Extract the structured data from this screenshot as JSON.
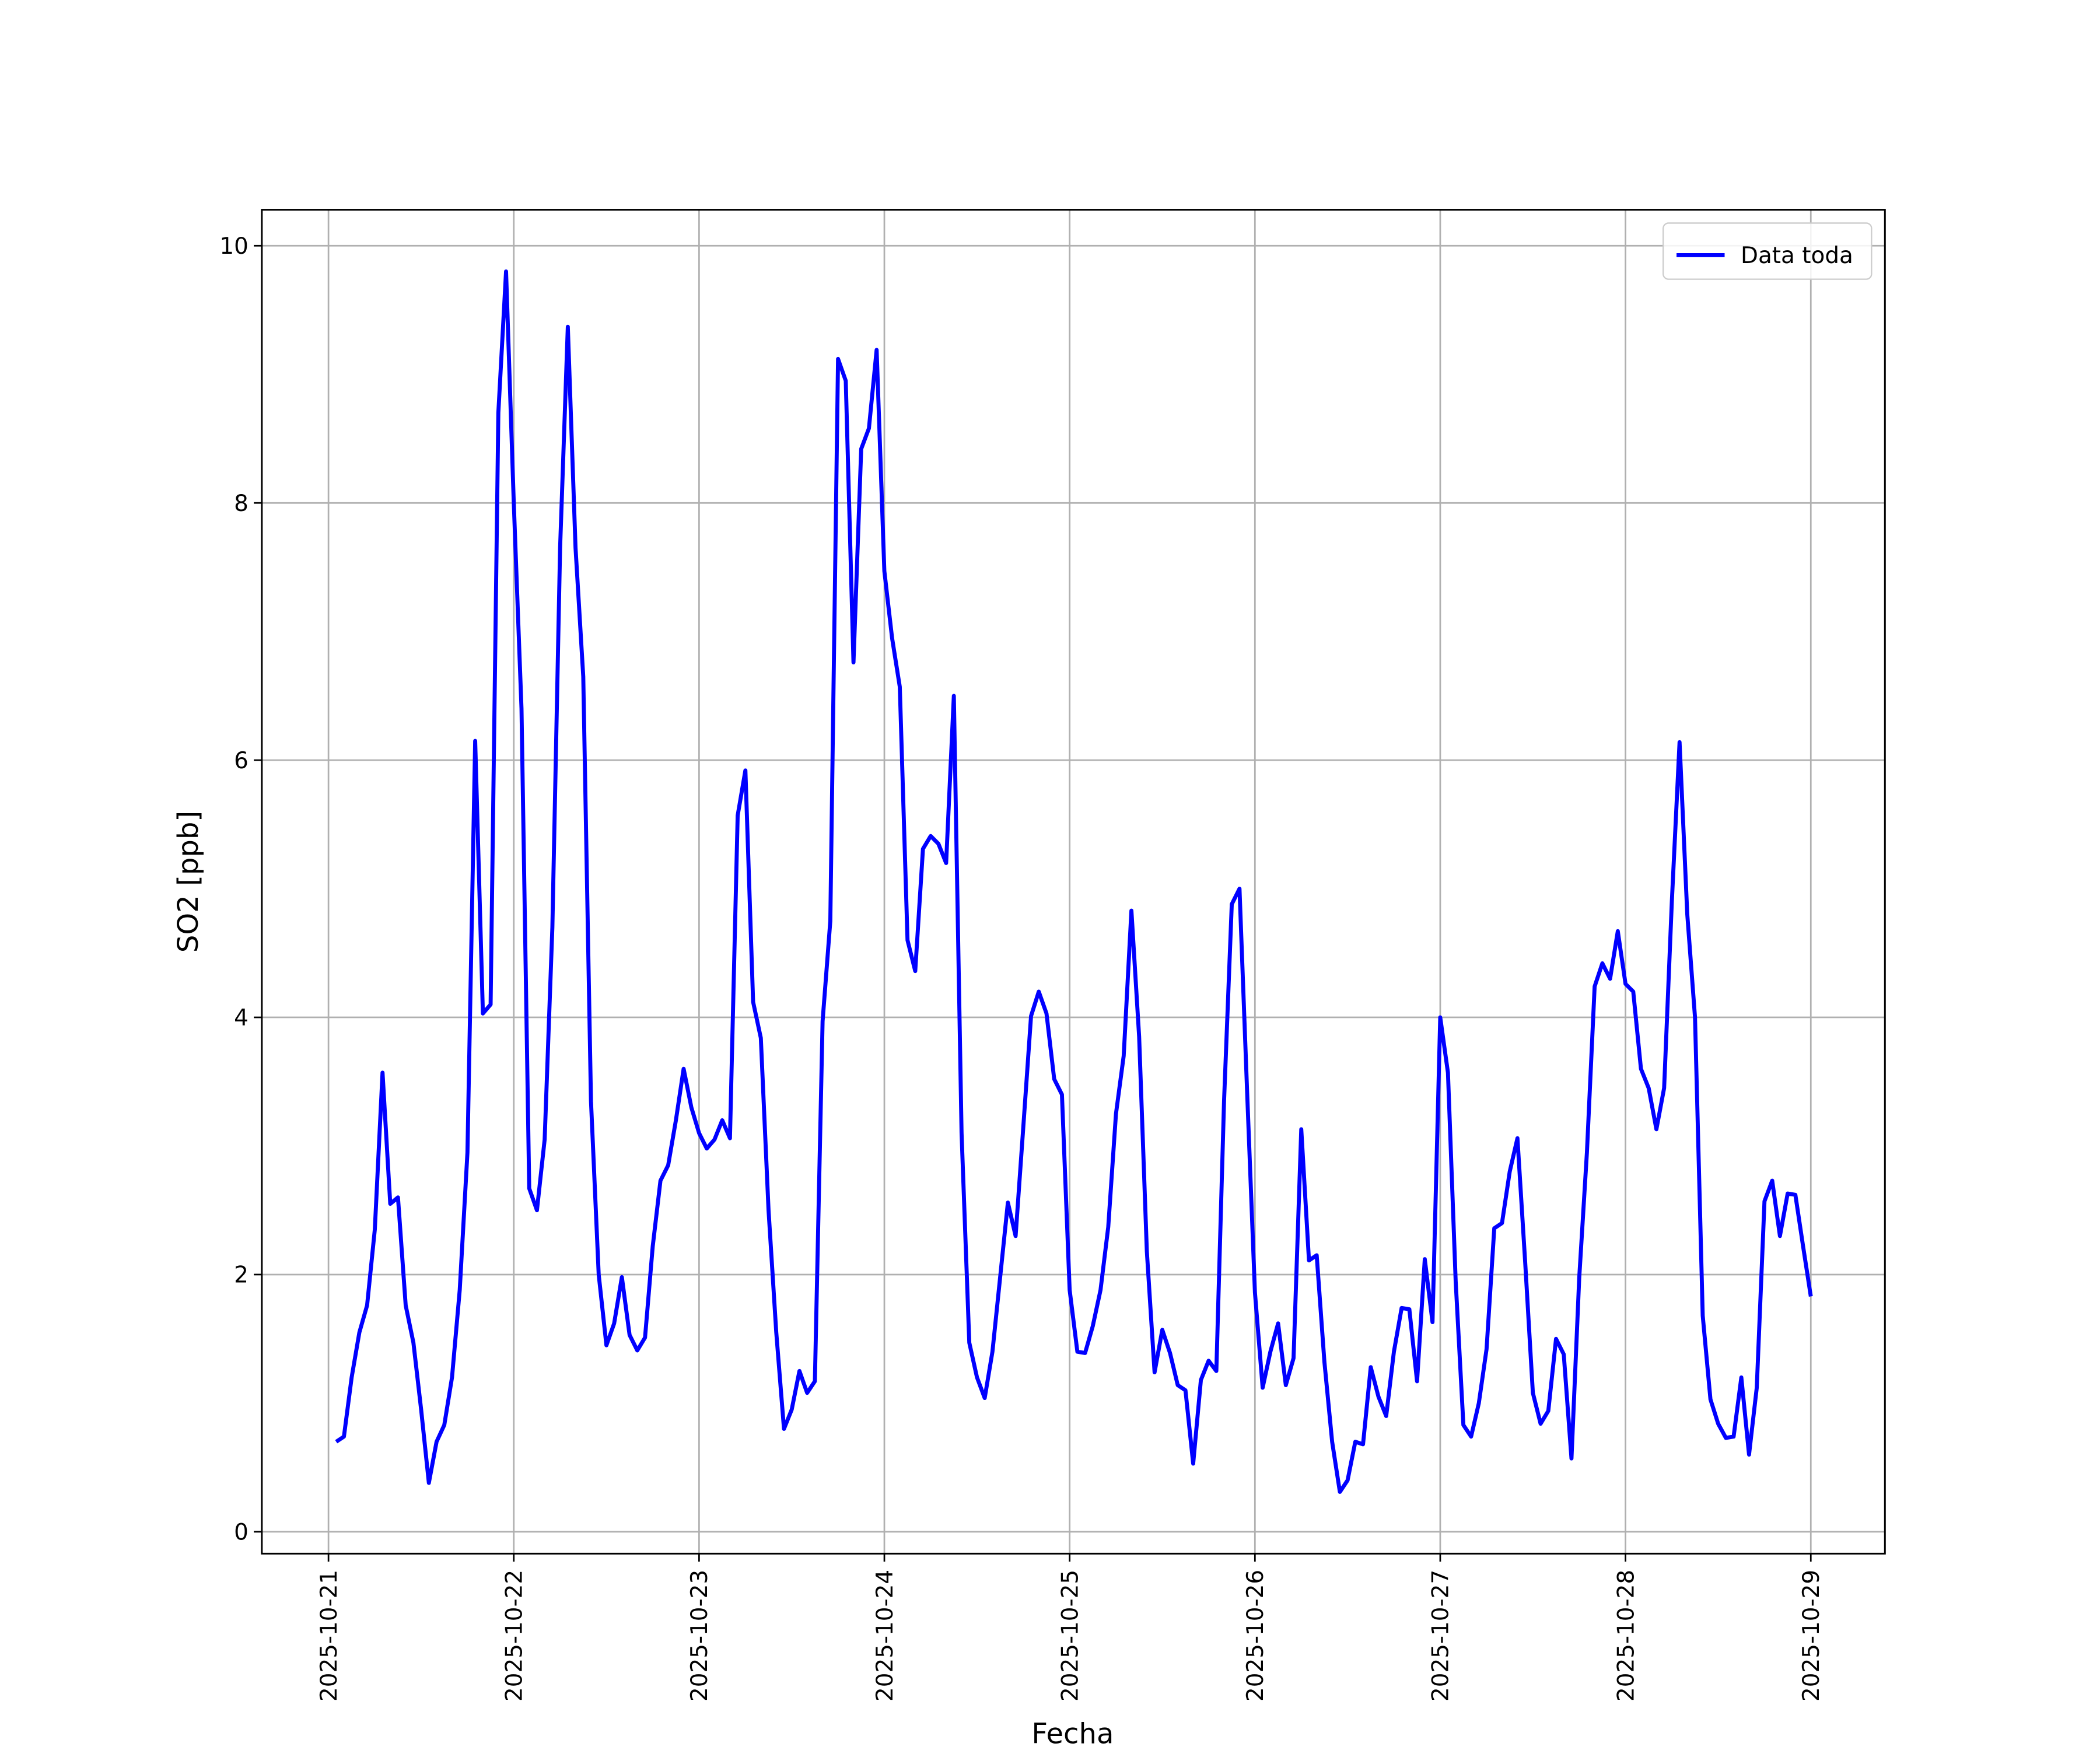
{
  "chart_data": {
    "type": "line",
    "xlabel": "Fecha",
    "ylabel": "SO2 [ppb]",
    "xlim": [
      "2025-10-20T15:22",
      "2025-10-29T09:36"
    ],
    "xticks": [
      "2025-10-21",
      "2025-10-22",
      "2025-10-23",
      "2025-10-24",
      "2025-10-25",
      "2025-10-26",
      "2025-10-27",
      "2025-10-28",
      "2025-10-29"
    ],
    "ylim": [
      -0.17,
      10.28
    ],
    "yticks": [
      0,
      2,
      4,
      6,
      8,
      10
    ],
    "grid": true,
    "legend": "upper right",
    "x": [
      "2025-10-21T01:00",
      "2025-10-21T02:00",
      "2025-10-21T03:00",
      "2025-10-21T04:00",
      "2025-10-21T05:00",
      "2025-10-21T06:00",
      "2025-10-21T07:00",
      "2025-10-21T08:00",
      "2025-10-21T09:00",
      "2025-10-21T10:00",
      "2025-10-21T11:00",
      "2025-10-21T12:00",
      "2025-10-21T13:00",
      "2025-10-21T14:00",
      "2025-10-21T15:00",
      "2025-10-21T16:00",
      "2025-10-21T17:00",
      "2025-10-21T18:00",
      "2025-10-21T19:00",
      "2025-10-21T20:00",
      "2025-10-21T21:00",
      "2025-10-21T22:00",
      "2025-10-21T23:00",
      "2025-10-22T00:00",
      "2025-10-22T01:00",
      "2025-10-22T02:00",
      "2025-10-22T03:00",
      "2025-10-22T04:00",
      "2025-10-22T05:00",
      "2025-10-22T06:00",
      "2025-10-22T07:00",
      "2025-10-22T08:00",
      "2025-10-22T09:00",
      "2025-10-22T10:00",
      "2025-10-22T11:00",
      "2025-10-22T12:00",
      "2025-10-22T13:00",
      "2025-10-22T14:00",
      "2025-10-22T15:00",
      "2025-10-22T16:00",
      "2025-10-22T17:00",
      "2025-10-22T18:00",
      "2025-10-22T19:00",
      "2025-10-22T20:00",
      "2025-10-22T21:00",
      "2025-10-22T22:00",
      "2025-10-22T23:00",
      "2025-10-23T00:00",
      "2025-10-23T01:00",
      "2025-10-23T02:00",
      "2025-10-23T03:00",
      "2025-10-23T04:00",
      "2025-10-23T05:00",
      "2025-10-23T06:00",
      "2025-10-23T07:00",
      "2025-10-23T08:00",
      "2025-10-23T09:00",
      "2025-10-23T10:00",
      "2025-10-23T11:00",
      "2025-10-23T12:00",
      "2025-10-23T13:00",
      "2025-10-23T14:00",
      "2025-10-23T15:00",
      "2025-10-23T16:00",
      "2025-10-23T17:00",
      "2025-10-23T18:00",
      "2025-10-23T19:00",
      "2025-10-23T20:00",
      "2025-10-23T21:00",
      "2025-10-23T22:00",
      "2025-10-23T23:00",
      "2025-10-24T00:00",
      "2025-10-24T01:00",
      "2025-10-24T02:00",
      "2025-10-24T03:00",
      "2025-10-24T04:00",
      "2025-10-24T05:00",
      "2025-10-24T06:00",
      "2025-10-24T07:00",
      "2025-10-24T08:00",
      "2025-10-24T09:00",
      "2025-10-24T10:00",
      "2025-10-24T11:00",
      "2025-10-24T12:00",
      "2025-10-24T13:00",
      "2025-10-24T14:00",
      "2025-10-24T15:00",
      "2025-10-24T16:00",
      "2025-10-24T17:00",
      "2025-10-24T18:00",
      "2025-10-24T19:00",
      "2025-10-24T20:00",
      "2025-10-24T21:00",
      "2025-10-24T22:00",
      "2025-10-24T23:00",
      "2025-10-25T00:00",
      "2025-10-25T01:00",
      "2025-10-25T02:00",
      "2025-10-25T03:00",
      "2025-10-25T04:00",
      "2025-10-25T05:00",
      "2025-10-25T06:00",
      "2025-10-25T07:00",
      "2025-10-25T08:00",
      "2025-10-25T09:00",
      "2025-10-25T10:00",
      "2025-10-25T11:00",
      "2025-10-25T12:00",
      "2025-10-25T13:00",
      "2025-10-25T14:00",
      "2025-10-25T15:00",
      "2025-10-25T16:00",
      "2025-10-25T17:00",
      "2025-10-25T18:00",
      "2025-10-25T19:00",
      "2025-10-25T20:00",
      "2025-10-25T21:00",
      "2025-10-25T22:00",
      "2025-10-25T23:00",
      "2025-10-26T00:00",
      "2025-10-26T01:00",
      "2025-10-26T02:00",
      "2025-10-26T03:00",
      "2025-10-26T04:00",
      "2025-10-26T05:00",
      "2025-10-26T06:00",
      "2025-10-26T07:00",
      "2025-10-26T08:00",
      "2025-10-26T09:00",
      "2025-10-26T10:00",
      "2025-10-26T11:00",
      "2025-10-26T12:00",
      "2025-10-26T13:00",
      "2025-10-26T14:00",
      "2025-10-26T15:00",
      "2025-10-26T16:00",
      "2025-10-26T17:00",
      "2025-10-26T18:00",
      "2025-10-26T19:00",
      "2025-10-26T20:00",
      "2025-10-26T21:00",
      "2025-10-26T22:00",
      "2025-10-26T23:00",
      "2025-10-27T00:00",
      "2025-10-27T01:00",
      "2025-10-27T02:00",
      "2025-10-27T03:00",
      "2025-10-27T04:00",
      "2025-10-27T05:00",
      "2025-10-27T06:00",
      "2025-10-27T07:00",
      "2025-10-27T08:00",
      "2025-10-27T09:00",
      "2025-10-27T10:00",
      "2025-10-27T11:00",
      "2025-10-27T12:00",
      "2025-10-27T13:00",
      "2025-10-27T14:00",
      "2025-10-27T15:00",
      "2025-10-27T16:00",
      "2025-10-27T17:00",
      "2025-10-27T18:00",
      "2025-10-27T19:00",
      "2025-10-27T20:00",
      "2025-10-27T21:00",
      "2025-10-27T22:00",
      "2025-10-27T23:00",
      "2025-10-28T00:00",
      "2025-10-28T01:00",
      "2025-10-28T02:00",
      "2025-10-28T03:00",
      "2025-10-28T04:00",
      "2025-10-28T05:00",
      "2025-10-28T06:00",
      "2025-10-28T07:00",
      "2025-10-28T08:00",
      "2025-10-28T09:00",
      "2025-10-28T10:00",
      "2025-10-28T11:00",
      "2025-10-28T12:00",
      "2025-10-28T13:00",
      "2025-10-28T14:00",
      "2025-10-28T15:00",
      "2025-10-28T16:00",
      "2025-10-28T17:00",
      "2025-10-28T18:00",
      "2025-10-28T19:00",
      "2025-10-28T20:00",
      "2025-10-28T21:00",
      "2025-10-28T22:00",
      "2025-10-28T23:00",
      "2025-10-29T00:00"
    ],
    "series": [
      {
        "name": "Data toda",
        "color": "#0000ff",
        "values": [
          0.7,
          0.74,
          1.2,
          1.55,
          1.76,
          2.35,
          3.57,
          2.55,
          2.6,
          1.76,
          1.47,
          0.95,
          0.38,
          0.7,
          0.83,
          1.2,
          1.88,
          2.95,
          6.15,
          4.03,
          4.1,
          8.7,
          9.8,
          8.0,
          6.4,
          2.67,
          2.5,
          3.05,
          4.7,
          7.65,
          9.37,
          7.65,
          6.65,
          3.35,
          2.0,
          1.45,
          1.62,
          1.98,
          1.53,
          1.41,
          1.51,
          2.22,
          2.73,
          2.85,
          3.2,
          3.6,
          3.3,
          3.1,
          2.98,
          3.05,
          3.2,
          3.06,
          5.57,
          5.92,
          4.12,
          3.84,
          2.5,
          1.55,
          0.8,
          0.95,
          1.25,
          1.08,
          1.17,
          3.97,
          4.75,
          9.12,
          8.95,
          6.76,
          8.42,
          8.58,
          9.19,
          7.47,
          6.95,
          6.57,
          4.6,
          4.36,
          5.31,
          5.41,
          5.35,
          5.2,
          6.5,
          3.1,
          1.47,
          1.2,
          1.04,
          1.4,
          1.98,
          2.56,
          2.3,
          3.15,
          4.01,
          4.2,
          4.03,
          3.52,
          3.4,
          1.88,
          1.4,
          1.39,
          1.6,
          1.88,
          2.37,
          3.25,
          3.7,
          4.83,
          3.85,
          2.18,
          1.24,
          1.57,
          1.39,
          1.14,
          1.1,
          0.53,
          1.18,
          1.33,
          1.25,
          3.35,
          4.88,
          5.0,
          3.4,
          1.86,
          1.12,
          1.4,
          1.62,
          1.14,
          1.35,
          3.13,
          2.11,
          2.15,
          1.32,
          0.7,
          0.31,
          0.4,
          0.7,
          0.68,
          1.28,
          1.05,
          0.9,
          1.4,
          1.74,
          1.73,
          1.17,
          2.12,
          1.63,
          4.0,
          3.57,
          1.95,
          0.83,
          0.74,
          1.0,
          1.42,
          2.36,
          2.4,
          2.8,
          3.06,
          2.1,
          1.08,
          0.84,
          0.94,
          1.5,
          1.38,
          0.57,
          1.97,
          2.95,
          4.24,
          4.42,
          4.3,
          4.67,
          4.26,
          4.2,
          3.6,
          3.45,
          3.13,
          3.45,
          4.9,
          6.14,
          4.8,
          4.0,
          1.68,
          1.03,
          0.84,
          0.73,
          0.74,
          1.2,
          0.6,
          1.12,
          2.57,
          2.73,
          2.3,
          2.63,
          2.62,
          2.22,
          1.83
        ]
      }
    ]
  }
}
